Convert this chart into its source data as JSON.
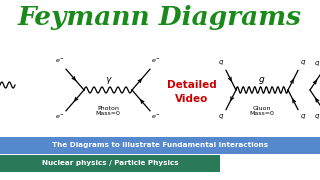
{
  "title": "Feymann Diagrams",
  "title_color": "#1a8a1a",
  "title_fontsize": 19,
  "bg_color": "#ffffff",
  "subtitle1": "The Diagrams to Illustrate Fundamental Interactions",
  "subtitle1_bg": "#5588cc",
  "subtitle1_color": "#ffffff",
  "subtitle2": "Nuclear physics / Particle Physics",
  "subtitle2_bg": "#2a7a5a",
  "subtitle2_color": "#ffffff",
  "detailed_video_color": "#cc0000",
  "photon_label": "Photon\nMass=0",
  "gluon_label": "Gluon\nMass=0",
  "gamma_label": "γ",
  "g_label": "g"
}
